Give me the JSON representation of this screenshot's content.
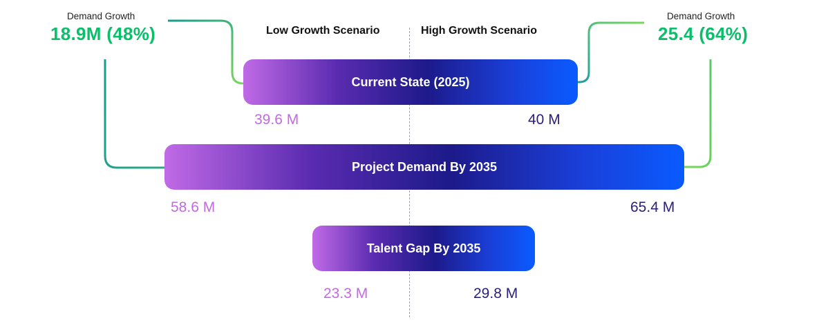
{
  "colors": {
    "growth_green": "#0bbf6a",
    "low_value": "#c26ae0",
    "high_value": "#2a1e78",
    "bar_start": "#c06ae6",
    "bar_mid": "#1d1a8a",
    "bar_end": "#0a5bff",
    "connector_start": "#169c8c",
    "connector_end": "#7ad85a"
  },
  "scenarios": {
    "low": "Low Growth Scenario",
    "high": "High Growth Scenario"
  },
  "demand_growth": {
    "low": {
      "label": "Demand Growth",
      "value": "18.9M (48%)"
    },
    "high": {
      "label": "Demand Growth",
      "value": "25.4 (64%)"
    }
  },
  "stages": [
    {
      "label": "Current State (2025)",
      "low": "39.6 M",
      "high": "40 M"
    },
    {
      "label": "Project Demand By 2035",
      "low": "58.6 M",
      "high": "65.4 M"
    },
    {
      "label": "Talent Gap By 2035",
      "low": "23.3 M",
      "high": "29.8 M"
    }
  ]
}
